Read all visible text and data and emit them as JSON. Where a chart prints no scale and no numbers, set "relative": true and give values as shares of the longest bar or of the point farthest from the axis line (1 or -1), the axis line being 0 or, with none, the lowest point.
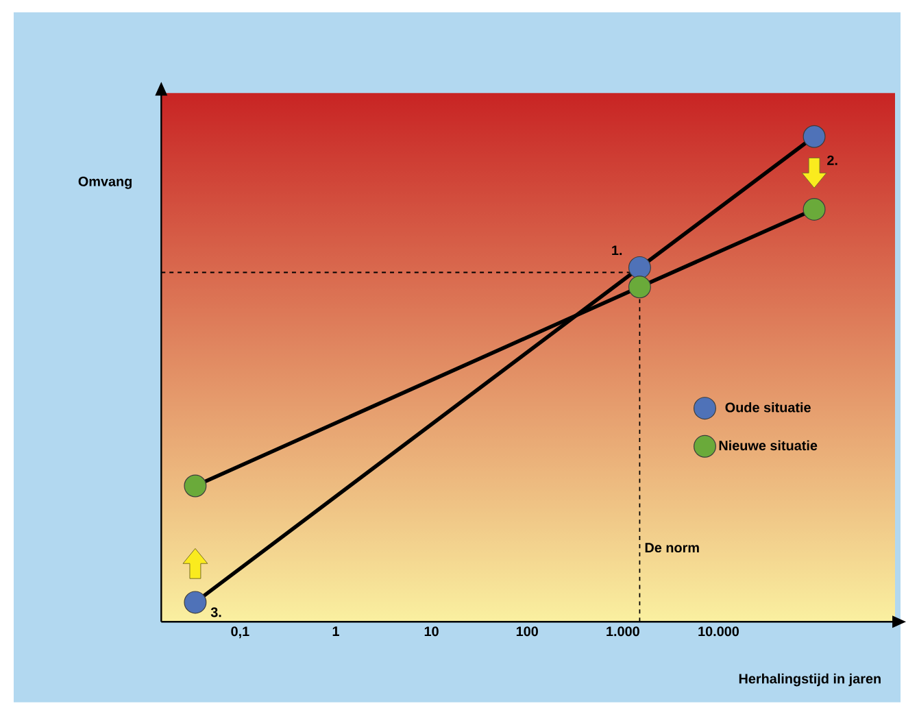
{
  "chart_data": {
    "type": "line",
    "relative": true,
    "log": "x",
    "xlabel": "Herhalingstijd in jaren",
    "ylabel": "Omvang",
    "xlim": [
      0.015,
      700000
    ],
    "xticks": [
      {
        "value": 0.1,
        "label": "0,1"
      },
      1,
      10,
      100,
      {
        "value": 1000,
        "label": "1.000"
      },
      {
        "value": 10000,
        "label": "10.000"
      }
    ],
    "series": [
      {
        "marker": "none",
        "color": "#000000",
        "x": [
          0.034,
          1500,
          100000
        ],
        "values": [
          0.04,
          0.73,
          1
        ]
      },
      {
        "marker": "none",
        "color": "#000000",
        "x": [
          0.034,
          1500,
          100000
        ],
        "values": [
          0.28,
          0.69,
          0.85
        ]
      },
      {
        "type": "scatter",
        "name": "Oude situatie",
        "color": "#4f72b8",
        "x": [
          0.034,
          1500,
          100000
        ],
        "values": [
          0.04,
          0.73,
          1
        ]
      },
      {
        "type": "scatter",
        "name": "Nieuwe situatie",
        "color": "#6aaa3a",
        "x": [
          0.034,
          1500,
          100000
        ],
        "values": [
          0.28,
          0.69,
          0.85
        ]
      }
    ],
    "ref_lines": [
      {
        "axis": "x",
        "value": 1500,
        "label": "De norm",
        "line_style": "dashed"
      },
      {
        "axis": "y",
        "value": 0.72,
        "line_style": "dashed"
      }
    ],
    "annotations": [
      "1.",
      "2.",
      "3."
    ],
    "marker": "circle",
    "legend": "right",
    "grid": false
  }
}
